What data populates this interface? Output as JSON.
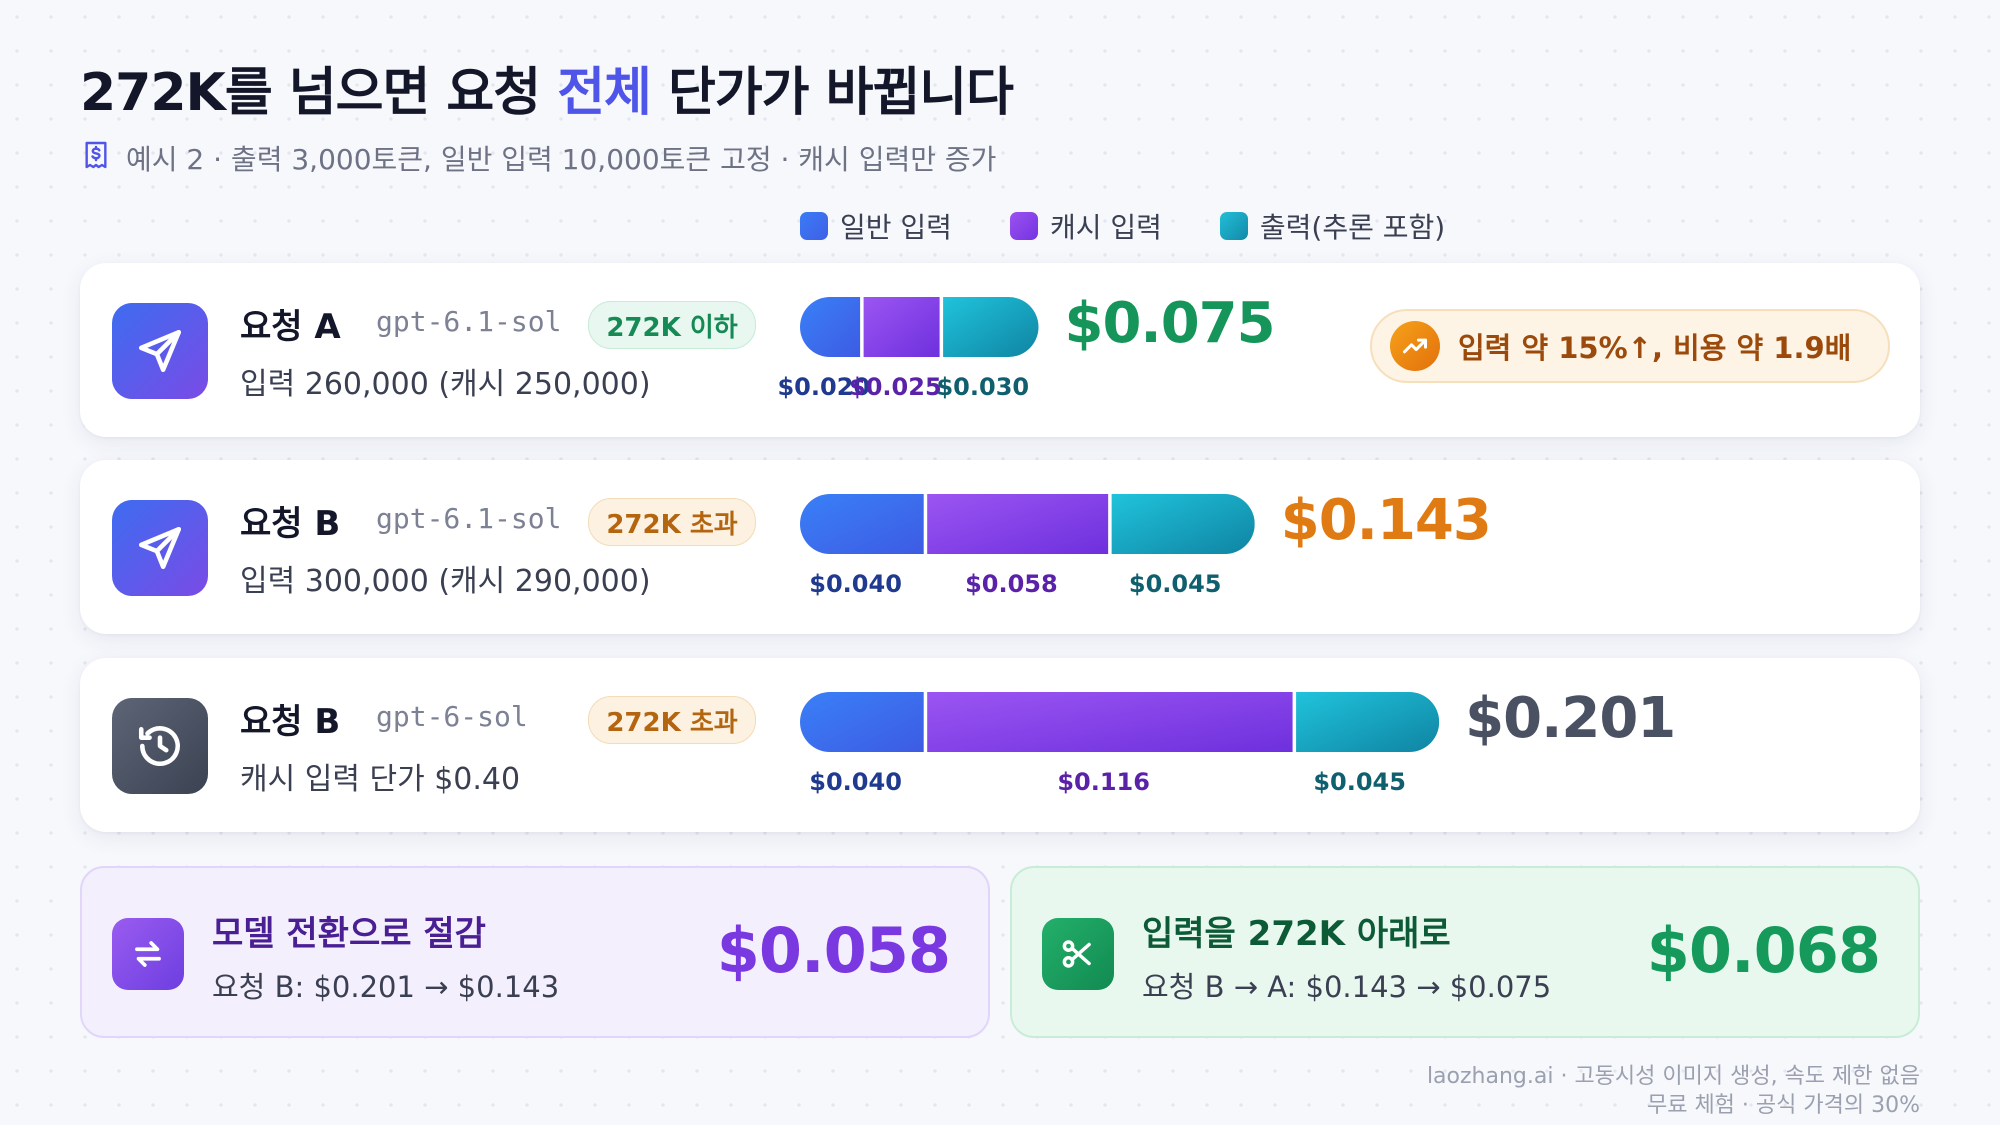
{
  "header": {
    "title_pre": "272K를 넘으면 요청 ",
    "title_highlight": "전체",
    "title_post": " 단가가 바뀝니다",
    "subtitle": "예시 2 · 출력 3,000토큰, 일반 입력 10,000토큰 고정 · 캐시 입력만 증가",
    "subtitle_icon": "receipt-dollar-icon"
  },
  "legend": [
    {
      "label": "일반 입력",
      "color": "#3f6ff2"
    },
    {
      "label": "캐시 입력",
      "color": "#8a44e8"
    },
    {
      "label": "출력(추론 포함)",
      "color": "#1aa6c4"
    }
  ],
  "chart_data": {
    "type": "bar",
    "orientation": "horizontal",
    "stacked": true,
    "categories": [
      "요청 A",
      "요청 B (gpt-6.1-sol)",
      "요청 B (gpt-6-sol)"
    ],
    "series": [
      {
        "name": "일반 입력",
        "values": [
          0.02,
          0.04,
          0.04
        ]
      },
      {
        "name": "캐시 입력",
        "values": [
          0.025,
          0.058,
          0.116
        ]
      },
      {
        "name": "출력(추론 포함)",
        "values": [
          0.03,
          0.045,
          0.045
        ]
      }
    ],
    "totals": [
      0.075,
      0.143,
      0.201
    ],
    "segment_labels": [
      [
        "$0.020",
        "$0.025",
        "$0.030"
      ],
      [
        "$0.040",
        "$0.058",
        "$0.045"
      ],
      [
        "$0.040",
        "$0.116",
        "$0.045"
      ]
    ],
    "total_labels": [
      "$0.075",
      "$0.143",
      "$0.201"
    ],
    "total_colors": [
      "#15955a",
      "#e07a12",
      "#4a5162"
    ],
    "legend_position": "top"
  },
  "rows": [
    {
      "name": "요청 A",
      "model": "gpt-6.1-sol",
      "badge": "272K 이하",
      "badge_tone": "green",
      "detail": "입력 260,000 (캐시 250,000)",
      "icon": "send-icon"
    },
    {
      "name": "요청 B",
      "model": "gpt-6.1-sol",
      "badge": "272K 초과",
      "badge_tone": "orange",
      "detail": "입력 300,000 (캐시 290,000)",
      "icon": "send-icon"
    },
    {
      "name": "요청 B",
      "model": "gpt-6-sol",
      "badge": "272K 초과",
      "badge_tone": "orange",
      "detail": "캐시 입력 단가 $0.40",
      "icon": "history-icon"
    }
  ],
  "callout": {
    "text": "입력 약 15%↑, 비용 약 1.9배",
    "icon": "trending-up-icon"
  },
  "savings": [
    {
      "title": "모델 전환으로 절감",
      "detail": "요청 B: $0.201 → $0.143",
      "value": "$0.058",
      "icon": "swap-arrows-icon"
    },
    {
      "title": "입력을 272K 아래로",
      "detail": "요청 B → A: $0.143 → $0.075",
      "value": "$0.068",
      "icon": "scissors-icon"
    }
  ],
  "footer": {
    "line1": "laozhang.ai · 고동시성 이미지 생성, 속도 제한 없음",
    "line2": "무료 체험 · 공식 가격의 30%"
  }
}
